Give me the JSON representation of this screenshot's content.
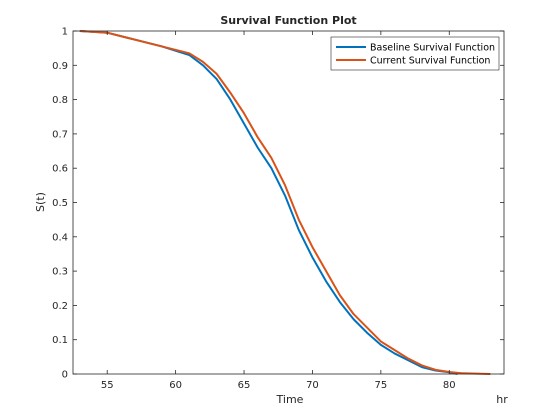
{
  "chart_data": {
    "type": "line",
    "title": "Survival Function Plot",
    "xlabel": "Time",
    "ylabel": "S(t)",
    "x_unit": "hr",
    "xlim": [
      52.5,
      84
    ],
    "ylim": [
      0,
      1
    ],
    "xticks": [
      55,
      60,
      65,
      70,
      75,
      80
    ],
    "yticks": [
      0,
      0.1,
      0.2,
      0.3,
      0.4,
      0.5,
      0.6,
      0.7,
      0.8,
      0.9,
      1
    ],
    "xtick_labels": [
      "55",
      "60",
      "65",
      "70",
      "75",
      "80"
    ],
    "ytick_labels": [
      "0",
      "0.1",
      "0.2",
      "0.3",
      "0.4",
      "0.5",
      "0.6",
      "0.7",
      "0.8",
      "0.9",
      "1"
    ],
    "grid": false,
    "legend_position": "top-right",
    "series": [
      {
        "name": "Baseline Survival Function",
        "color": "#0072BD",
        "x": [
          53,
          55,
          57,
          59,
          61,
          62,
          63,
          64,
          65,
          66,
          67,
          68,
          69,
          70,
          71,
          72,
          73,
          74,
          75,
          76,
          77,
          78,
          79,
          80,
          80.6
        ],
        "y": [
          1.0,
          0.995,
          0.975,
          0.955,
          0.93,
          0.9,
          0.86,
          0.8,
          0.73,
          0.66,
          0.6,
          0.52,
          0.42,
          0.34,
          0.27,
          0.21,
          0.16,
          0.12,
          0.085,
          0.06,
          0.04,
          0.02,
          0.01,
          0.005,
          0.0
        ]
      },
      {
        "name": "Current Survival Function",
        "color": "#D95319",
        "x": [
          53,
          55,
          57,
          59,
          61,
          62,
          63,
          64,
          65,
          66,
          67,
          68,
          69,
          70,
          71,
          72,
          73,
          74,
          75,
          76,
          77,
          78,
          79,
          80,
          81,
          83
        ],
        "y": [
          1.0,
          0.995,
          0.975,
          0.955,
          0.935,
          0.91,
          0.875,
          0.82,
          0.76,
          0.69,
          0.63,
          0.55,
          0.45,
          0.37,
          0.3,
          0.23,
          0.175,
          0.135,
          0.095,
          0.07,
          0.045,
          0.025,
          0.012,
          0.006,
          0.002,
          0.0
        ]
      }
    ]
  }
}
